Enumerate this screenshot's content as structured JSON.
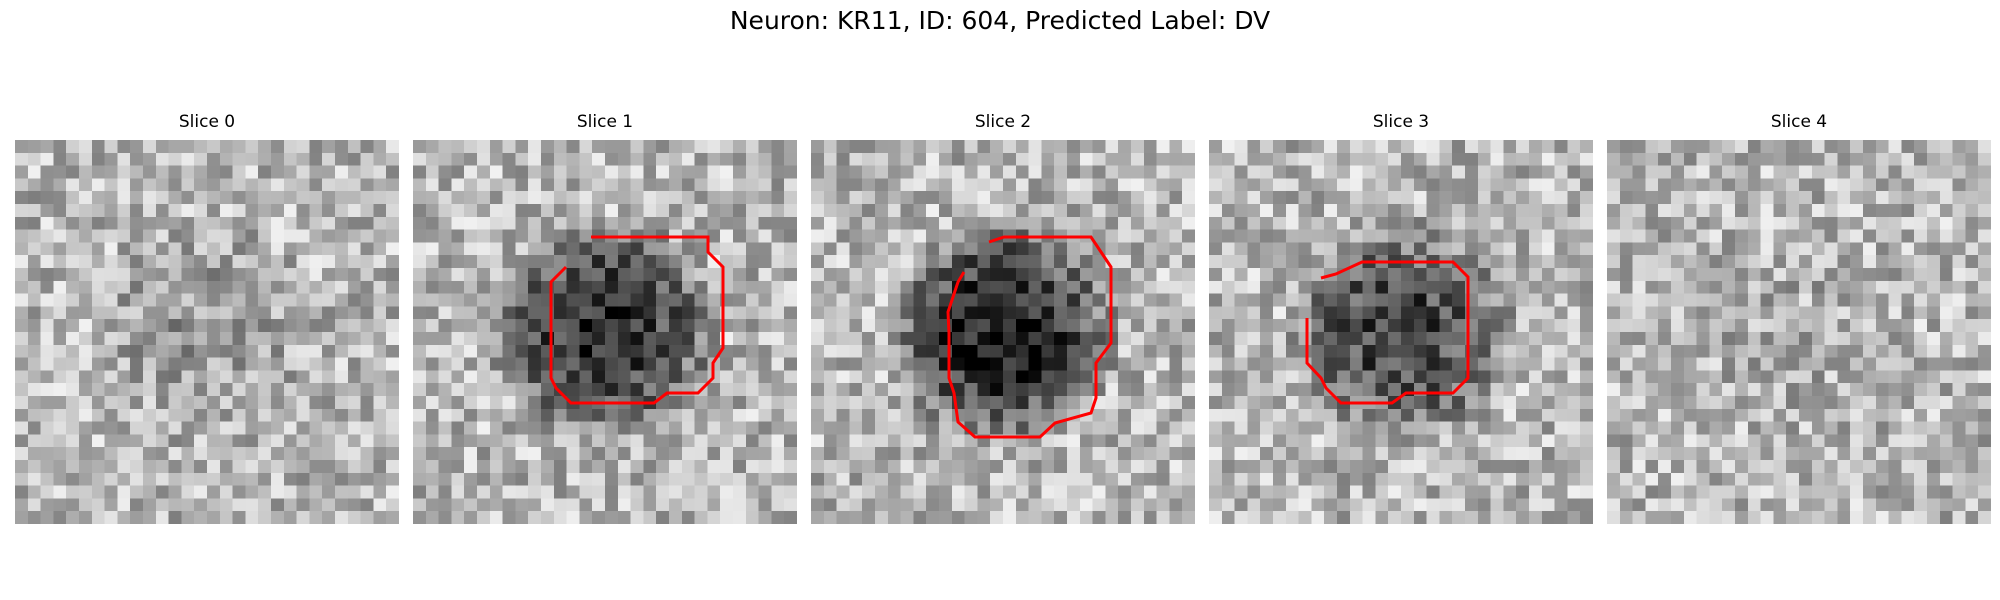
{
  "figure": {
    "title": "Neuron: KR11, ID: 604, Predicted Label: DV",
    "contour_color": "#ff0000",
    "colormap": "gray"
  },
  "panels": [
    {
      "title": "Slice 0",
      "has_contour": false,
      "blob_strength": 0.15,
      "blob_seed": 11
    },
    {
      "title": "Slice 1",
      "has_contour": true,
      "blob_strength": 0.75,
      "blob_seed": 23
    },
    {
      "title": "Slice 2",
      "has_contour": true,
      "blob_strength": 0.85,
      "blob_seed": 37
    },
    {
      "title": "Slice 3",
      "has_contour": true,
      "blob_strength": 0.65,
      "blob_seed": 41
    },
    {
      "title": "Slice 4",
      "has_contour": false,
      "blob_strength": 0.05,
      "blob_seed": 53
    }
  ]
}
